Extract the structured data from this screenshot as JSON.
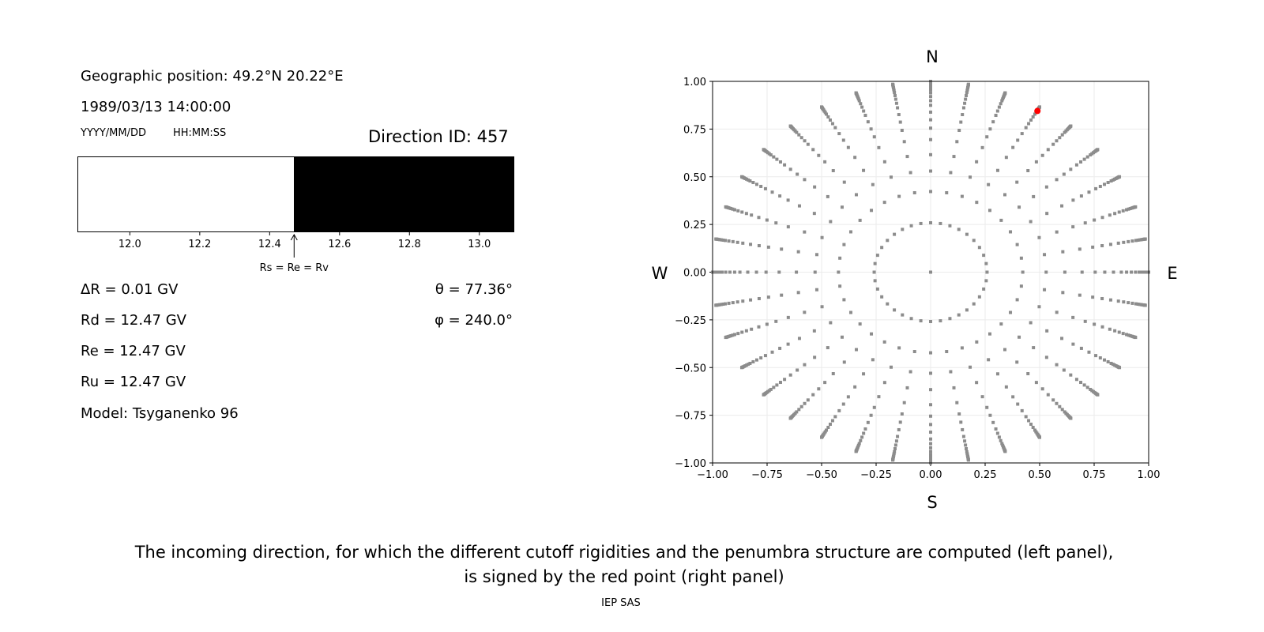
{
  "left_panel": {
    "geo_position": "Geographic position: 49.2°N 20.22°E",
    "datetime": "1989/03/13 14:00:00",
    "date_format": "YYYY/MM/DD",
    "time_format": "HH:MM:SS",
    "direction_id": "Direction ID: 457",
    "delta_r": "ΔR = 0.01 GV",
    "rd": "Rd = 12.47 GV",
    "re": "Re = 12.47 GV",
    "ru": "Ru = 12.47 GV",
    "model": "Model: Tsyganenko 96",
    "theta": "θ = 77.36°",
    "phi": "φ = 240.0°",
    "arrow_label": "Rs = Re = Rv"
  },
  "chart_data": [
    {
      "type": "bar",
      "description_role": "penumbra",
      "xlim": [
        11.85,
        13.1
      ],
      "ticks": [
        "12.0",
        "12.2",
        "12.4",
        "12.6",
        "12.8",
        "13.0"
      ],
      "tick_values": [
        12.0,
        12.2,
        12.4,
        12.6,
        12.8,
        13.0
      ],
      "allowed_from": 12.47,
      "marker_value": 12.47,
      "colors": {
        "allowed": "#000000",
        "forbidden": "#ffffff"
      }
    },
    {
      "type": "scatter",
      "xlim": [
        -1,
        1
      ],
      "ylim": [
        -1,
        1
      ],
      "grid": true,
      "xticks": [
        "−1.00",
        "−0.75",
        "−0.50",
        "−0.25",
        "0.00",
        "0.25",
        "0.50",
        "0.75",
        "1.00"
      ],
      "yticks": [
        "1.00",
        "0.75",
        "0.50",
        "0.25",
        "0.00",
        "−0.25",
        "−0.50",
        "−0.75",
        "−1.00"
      ],
      "tick_values": [
        -1,
        -0.75,
        -0.5,
        -0.25,
        0,
        0.25,
        0.5,
        0.75,
        1
      ],
      "compass": {
        "n": "N",
        "s": "S",
        "w": "W",
        "e": "E"
      },
      "zenith_angles_deg": [
        0,
        15,
        25,
        32,
        38,
        44,
        49,
        53,
        57,
        61,
        64,
        67,
        70,
        73,
        75,
        77,
        79,
        81,
        83,
        85,
        87,
        90
      ],
      "azimuth_step_deg": 10,
      "point_color": "#8c8c8c",
      "highlight": {
        "x": 0.49,
        "y": 0.845,
        "color": "#ff0000"
      }
    }
  ],
  "caption": {
    "line1": "The incoming direction, for which the different cutoff rigidities and the penumbra structure are computed (left panel),",
    "line2": "is signed by the red point (right panel)",
    "footer": "IEP SAS"
  }
}
